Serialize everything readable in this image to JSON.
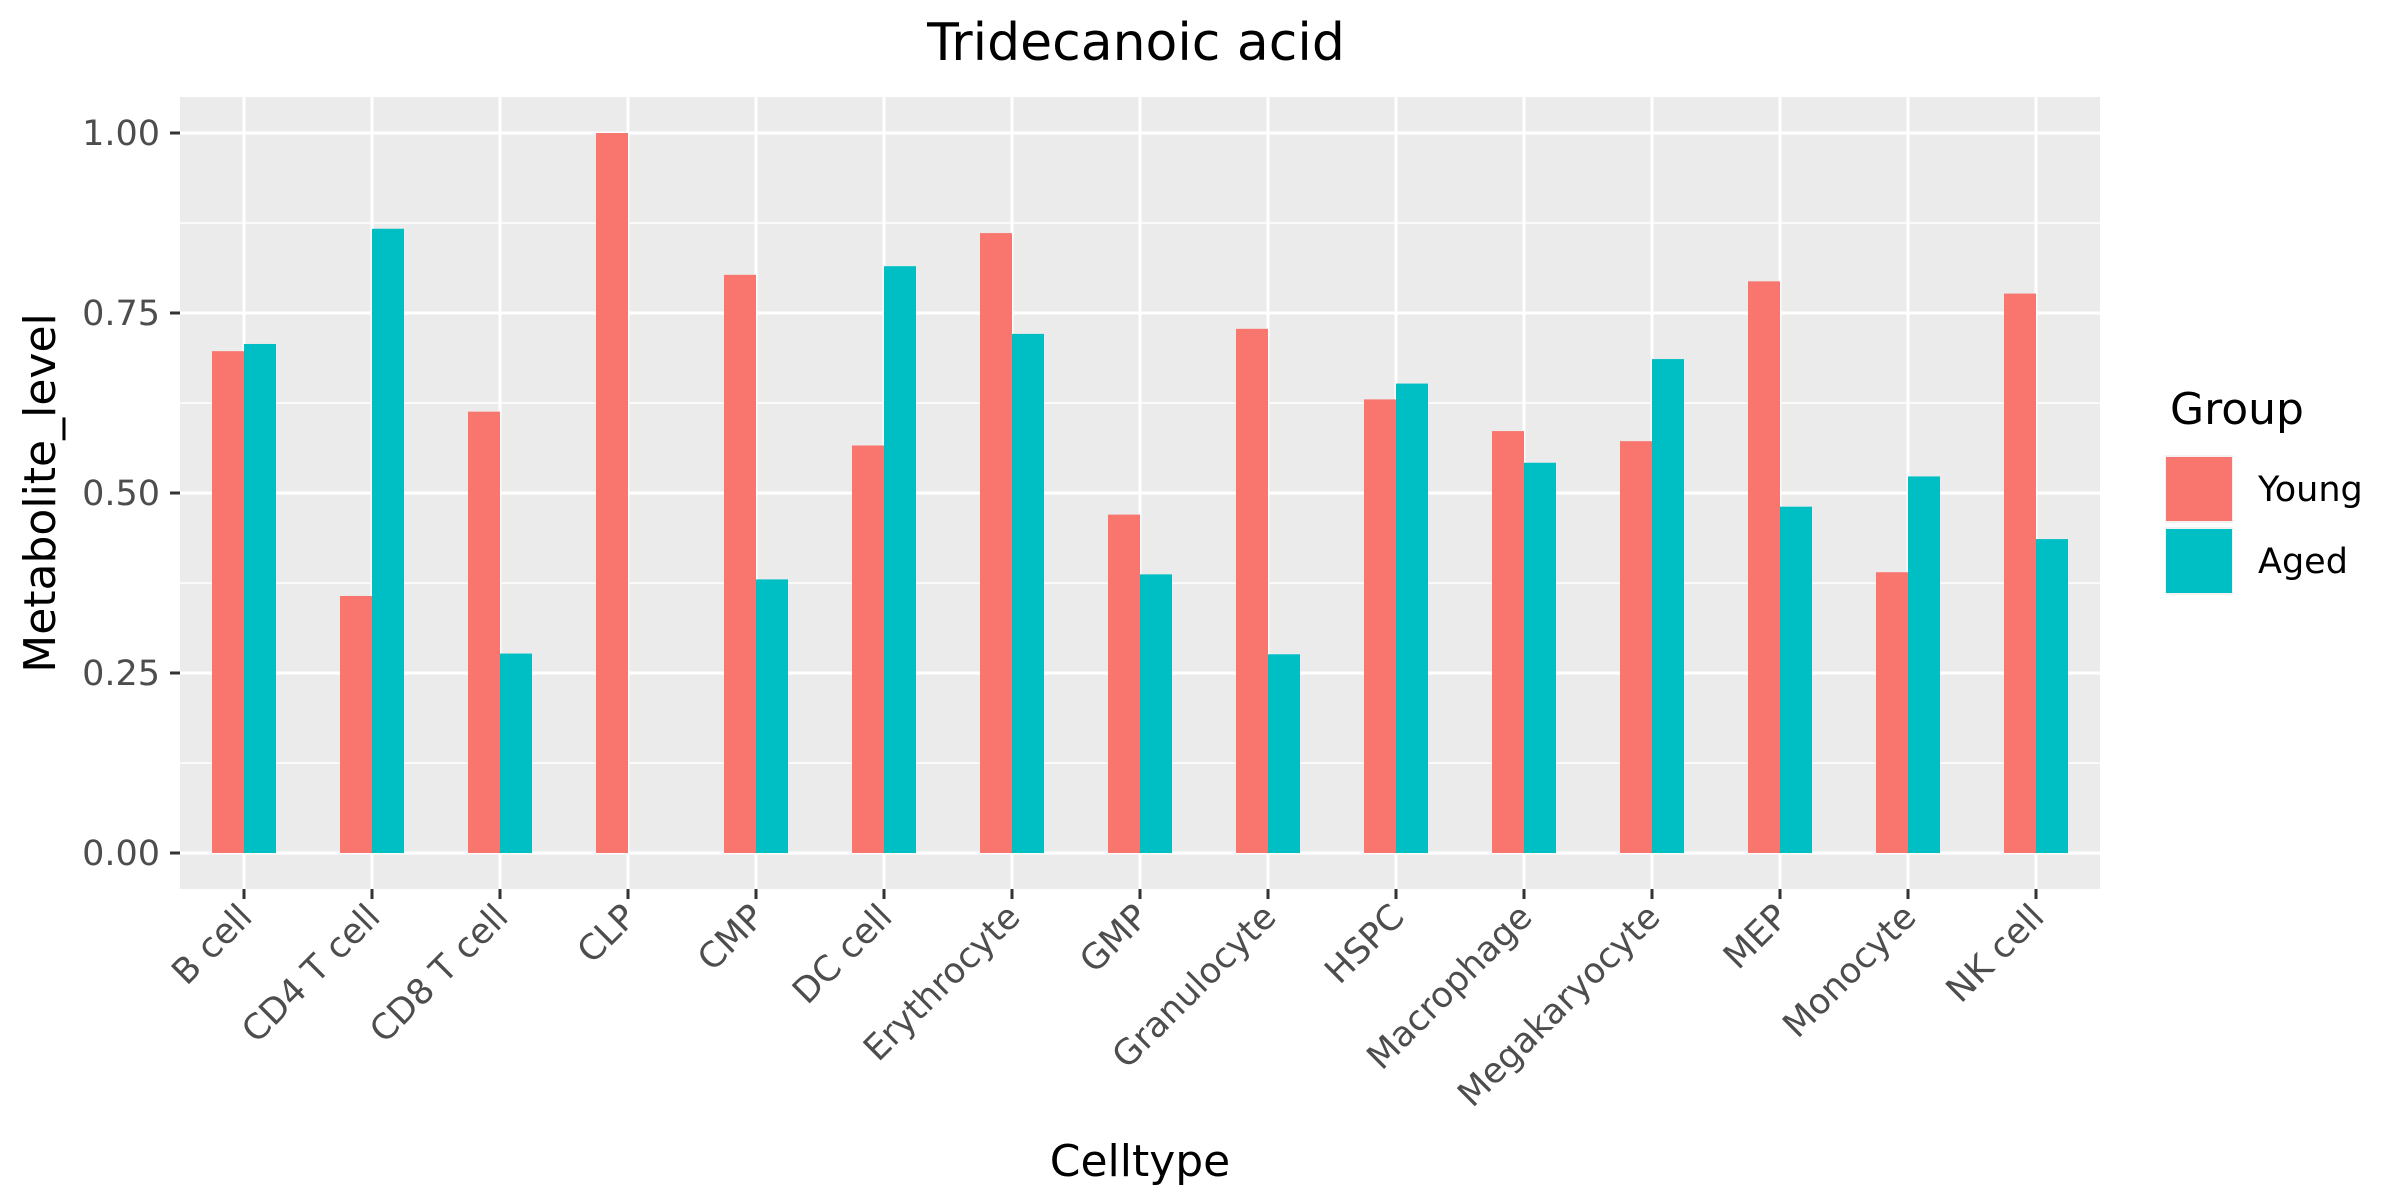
{
  "chart_data": {
    "type": "bar",
    "title": "Tridecanoic acid",
    "xlabel": "Celltype",
    "ylabel": "Metabolite_level",
    "ylim": [
      -0.05,
      1.05
    ],
    "yticks": [
      0.0,
      0.25,
      0.5,
      0.75,
      1.0
    ],
    "ytick_labels": [
      "0.00",
      "0.25",
      "0.50",
      "0.75",
      "1.00"
    ],
    "grid": true,
    "legend_position": "right",
    "legend_title": "Group",
    "categories": [
      "B cell",
      "CD4 T cell",
      "CD8 T cell",
      "CLP",
      "CMP",
      "DC cell",
      "Erythrocyte",
      "GMP",
      "Granulocyte",
      "HSPC",
      "Macrophage",
      "Megakaryocyte",
      "MEP",
      "Monocyte",
      "NK cell"
    ],
    "series": [
      {
        "name": "Young",
        "color": "#F8766D",
        "values": [
          0.697,
          0.357,
          0.613,
          1.0,
          0.803,
          0.566,
          0.861,
          0.47,
          0.728,
          0.63,
          0.586,
          0.572,
          0.794,
          0.39,
          0.777
        ]
      },
      {
        "name": "Aged",
        "color": "#00BFC4",
        "values": [
          0.707,
          0.867,
          0.277,
          null,
          0.38,
          0.815,
          0.721,
          0.387,
          0.276,
          0.652,
          0.542,
          0.686,
          0.481,
          0.523,
          0.436
        ]
      }
    ]
  }
}
